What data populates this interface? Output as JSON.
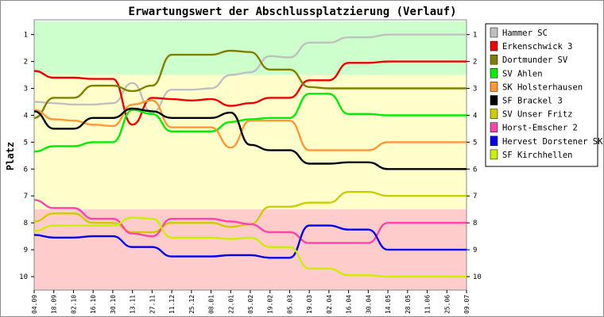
{
  "chart_data": {
    "type": "line",
    "title": "Erwartungswert der Abschlussplatzierung (Verlauf)",
    "ylabel": "Platz",
    "xlabel": "",
    "ylim": [
      0.45,
      10.5
    ],
    "y_inverted": true,
    "yticks": [
      "1",
      "2",
      "3",
      "4",
      "5",
      "6",
      "7",
      "8",
      "9",
      "10"
    ],
    "bands": [
      {
        "from": 0.5,
        "to": 2.5,
        "color": "#ccffcc"
      },
      {
        "from": 2.5,
        "to": 7.5,
        "color": "#ffffcc"
      },
      {
        "from": 7.5,
        "to": 10.5,
        "color": "#ffcccc"
      }
    ],
    "x": [
      "04.09",
      "18.09",
      "02.10",
      "16.10",
      "30.10",
      "13.11",
      "27.11",
      "11.12",
      "25.12",
      "08.01",
      "22.01",
      "05.02",
      "19.02",
      "05.03",
      "19.03",
      "02.04",
      "16.04",
      "30.04",
      "14.05",
      "28.05",
      "11.06",
      "25.06",
      "09.07"
    ],
    "legend_position": "right",
    "series": [
      {
        "name": "Hammer SC",
        "color": "#c0c0c0",
        "values": [
          3.5,
          3.55,
          3.6,
          3.6,
          3.55,
          2.8,
          3.9,
          3.05,
          3.05,
          3.0,
          2.5,
          2.4,
          1.8,
          1.85,
          1.3,
          1.3,
          1.1,
          1.1,
          1.0,
          1.0,
          1.0,
          1.0,
          1.0
        ]
      },
      {
        "name": "Erkenschwick 3",
        "color": "#ee0000",
        "values": [
          2.35,
          2.6,
          2.6,
          2.65,
          2.65,
          4.35,
          3.35,
          3.4,
          3.45,
          3.4,
          3.65,
          3.55,
          3.35,
          3.35,
          2.7,
          2.7,
          2.05,
          2.05,
          2.0,
          2.0,
          2.0,
          2.0,
          2.0
        ]
      },
      {
        "name": "Dortmunder SV",
        "color": "#808000",
        "values": [
          4.1,
          3.35,
          3.35,
          2.9,
          2.9,
          3.1,
          2.9,
          1.75,
          1.75,
          1.75,
          1.6,
          1.65,
          2.3,
          2.3,
          2.95,
          3.0,
          3.0,
          3.0,
          3.0,
          3.0,
          3.0,
          3.0,
          3.0
        ]
      },
      {
        "name": "SV Ahlen",
        "color": "#00ee00",
        "values": [
          5.35,
          5.15,
          5.15,
          5.0,
          5.0,
          3.8,
          3.95,
          4.6,
          4.6,
          4.6,
          4.25,
          4.15,
          4.1,
          4.1,
          3.2,
          3.2,
          3.95,
          3.95,
          4.0,
          4.0,
          4.0,
          4.0,
          4.0
        ]
      },
      {
        "name": "SK Holsterhausen",
        "color": "#ff9933",
        "values": [
          3.8,
          4.15,
          4.2,
          4.35,
          4.4,
          3.6,
          3.45,
          4.45,
          4.45,
          4.45,
          5.2,
          4.2,
          4.2,
          4.2,
          5.3,
          5.3,
          5.3,
          5.3,
          5.0,
          5.0,
          5.0,
          5.0,
          5.0
        ]
      },
      {
        "name": "SF Brackel 3",
        "color": "#000000",
        "values": [
          3.85,
          4.5,
          4.5,
          4.1,
          4.1,
          3.75,
          3.85,
          4.1,
          4.1,
          4.1,
          3.9,
          5.1,
          5.3,
          5.3,
          5.8,
          5.8,
          5.75,
          5.75,
          6.0,
          6.0,
          6.0,
          6.0,
          6.0
        ]
      },
      {
        "name": "SV Unser Fritz",
        "color": "#cccc00",
        "values": [
          7.95,
          7.65,
          7.65,
          8.0,
          8.0,
          8.35,
          8.35,
          8.0,
          8.0,
          8.0,
          8.15,
          8.05,
          7.4,
          7.4,
          7.25,
          7.25,
          6.85,
          6.85,
          7.0,
          7.0,
          7.0,
          7.0,
          7.0
        ]
      },
      {
        "name": "Horst-Emscher 2",
        "color": "#ff44aa",
        "values": [
          7.15,
          7.45,
          7.45,
          7.85,
          7.85,
          8.4,
          8.5,
          7.85,
          7.85,
          7.85,
          7.95,
          8.05,
          8.35,
          8.35,
          8.75,
          8.75,
          8.75,
          8.75,
          8.0,
          8.0,
          8.0,
          8.0,
          8.0
        ]
      },
      {
        "name": "Hervest Dorstener SK",
        "color": "#0000ee",
        "values": [
          8.45,
          8.55,
          8.55,
          8.5,
          8.5,
          8.9,
          8.9,
          9.25,
          9.25,
          9.25,
          9.2,
          9.2,
          9.3,
          9.3,
          8.1,
          8.1,
          8.25,
          8.25,
          9.0,
          9.0,
          9.0,
          9.0,
          9.0
        ]
      },
      {
        "name": "SF Kirchhellen",
        "color": "#ccee00",
        "values": [
          8.3,
          8.1,
          8.1,
          8.1,
          8.1,
          7.8,
          7.85,
          8.55,
          8.55,
          8.55,
          8.6,
          8.55,
          8.9,
          8.9,
          9.7,
          9.7,
          9.95,
          9.95,
          10.0,
          10.0,
          10.0,
          10.0,
          10.0
        ]
      }
    ]
  }
}
